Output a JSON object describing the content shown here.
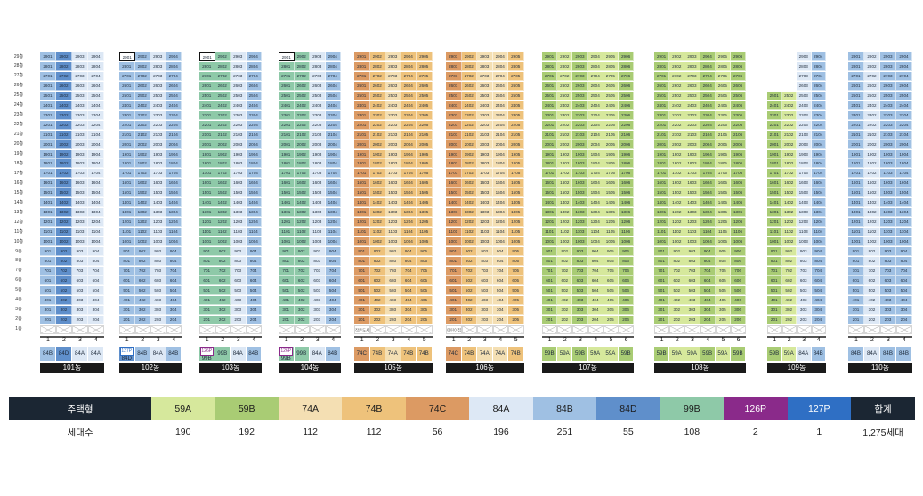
{
  "colors": {
    "59A": "#d6e89c",
    "59B": "#a9cc74",
    "74A": "#f4dfb3",
    "74B": "#eec27b",
    "74C": "#dc9a63",
    "84A": "#dde8f5",
    "84B": "#9fc0e3",
    "84D": "#5f8fcb",
    "99B": "#8ec9a8",
    "126P": "#8a2a8a",
    "127P": "#2f6fc4"
  },
  "floor_labels": [
    "29층",
    "28층",
    "27층",
    "26층",
    "25층",
    "24층",
    "23층",
    "22층",
    "21층",
    "20층",
    "19층",
    "18층",
    "17층",
    "16층",
    "15층",
    "14층",
    "13층",
    "12층",
    "11층",
    "10층",
    "9층",
    "8층",
    "7층",
    "6층",
    "5층",
    "4층",
    "3층",
    "2층",
    "1층"
  ],
  "buildings": [
    {
      "name": "101동",
      "line_types": [
        "84B",
        "84D",
        "84A",
        "84A"
      ],
      "top_floor": 29,
      "ground": [
        "x",
        "x",
        "x",
        "x"
      ],
      "boxed": [],
      "special": []
    },
    {
      "name": "102동",
      "line_types": [
        "84B",
        "84B",
        "84A",
        "84B"
      ],
      "top_floor": 29,
      "ground": [
        "x",
        "x",
        "x",
        "x"
      ],
      "boxed": [
        [
          29,
          0
        ]
      ],
      "special": [
        {
          "line": 0,
          "type": "127P",
          "type2": "84D"
        }
      ]
    },
    {
      "name": "103동",
      "line_types": [
        "99B",
        "99B",
        "84A",
        "84B"
      ],
      "top_floor": 29,
      "ground": [
        "x",
        "x",
        "x",
        "x"
      ],
      "boxed": [
        [
          29,
          0
        ]
      ],
      "special": [
        {
          "line": 0,
          "type": "126P"
        }
      ]
    },
    {
      "name": "104동",
      "line_types": [
        "99B",
        "99B",
        "84A",
        "84B"
      ],
      "top_floor": 29,
      "ground": [
        "x",
        "x",
        "x",
        "x"
      ],
      "boxed": [
        [
          29,
          0
        ]
      ],
      "special": [
        {
          "line": 0,
          "type": "126P"
        }
      ]
    },
    {
      "name": "105동",
      "line_types": [
        "74C",
        "74B",
        "74A",
        "74B",
        "74B"
      ],
      "top_floor": 29,
      "ground": [
        "작은도서관",
        "x",
        "x",
        "x",
        "x"
      ],
      "boxed": [],
      "special": []
    },
    {
      "name": "106동",
      "line_types": [
        "74C",
        "74B",
        "74A",
        "74A",
        "74B"
      ],
      "top_floor": 29,
      "ground": [
        "어린이집",
        "x",
        "x",
        "x",
        "x"
      ],
      "boxed": [],
      "special": []
    },
    {
      "name": "107동",
      "line_types": [
        "59B",
        "59A",
        "59B",
        "59A",
        "59A",
        "59B"
      ],
      "top_floor": 29,
      "ground": [
        "x",
        "x",
        "x",
        "x",
        "x",
        "x"
      ],
      "boxed": [],
      "special": []
    },
    {
      "name": "108동",
      "line_types": [
        "59B",
        "59A",
        "59A",
        "59B",
        "59A",
        "59B"
      ],
      "top_floor": 29,
      "ground": [
        "x",
        "x",
        "x",
        "x",
        "x",
        "x"
      ],
      "boxed": [],
      "special": []
    },
    {
      "name": "109동",
      "line_types": [
        "59B",
        "59A",
        "84A",
        "84B"
      ],
      "top_floor": 29,
      "line_tops": [
        25,
        25,
        29,
        29
      ],
      "ground": [
        "x",
        "x",
        "x",
        "x"
      ],
      "boxed": [],
      "special": []
    },
    {
      "name": "110동",
      "line_types": [
        "84B",
        "84A",
        "84B",
        "84B"
      ],
      "top_floor": 29,
      "ground": [
        "x",
        "x",
        "x",
        "x"
      ],
      "boxed": [],
      "special": []
    }
  ],
  "summary": {
    "header_label": "주택형",
    "types": [
      "59A",
      "59B",
      "74A",
      "74B",
      "74C",
      "84A",
      "84B",
      "84D",
      "99B",
      "126P",
      "127P"
    ],
    "total_label": "합계",
    "count_label": "세대수",
    "counts": [
      "190",
      "192",
      "112",
      "112",
      "56",
      "196",
      "251",
      "55",
      "108",
      "2",
      "1"
    ],
    "total": "1,275세대"
  }
}
